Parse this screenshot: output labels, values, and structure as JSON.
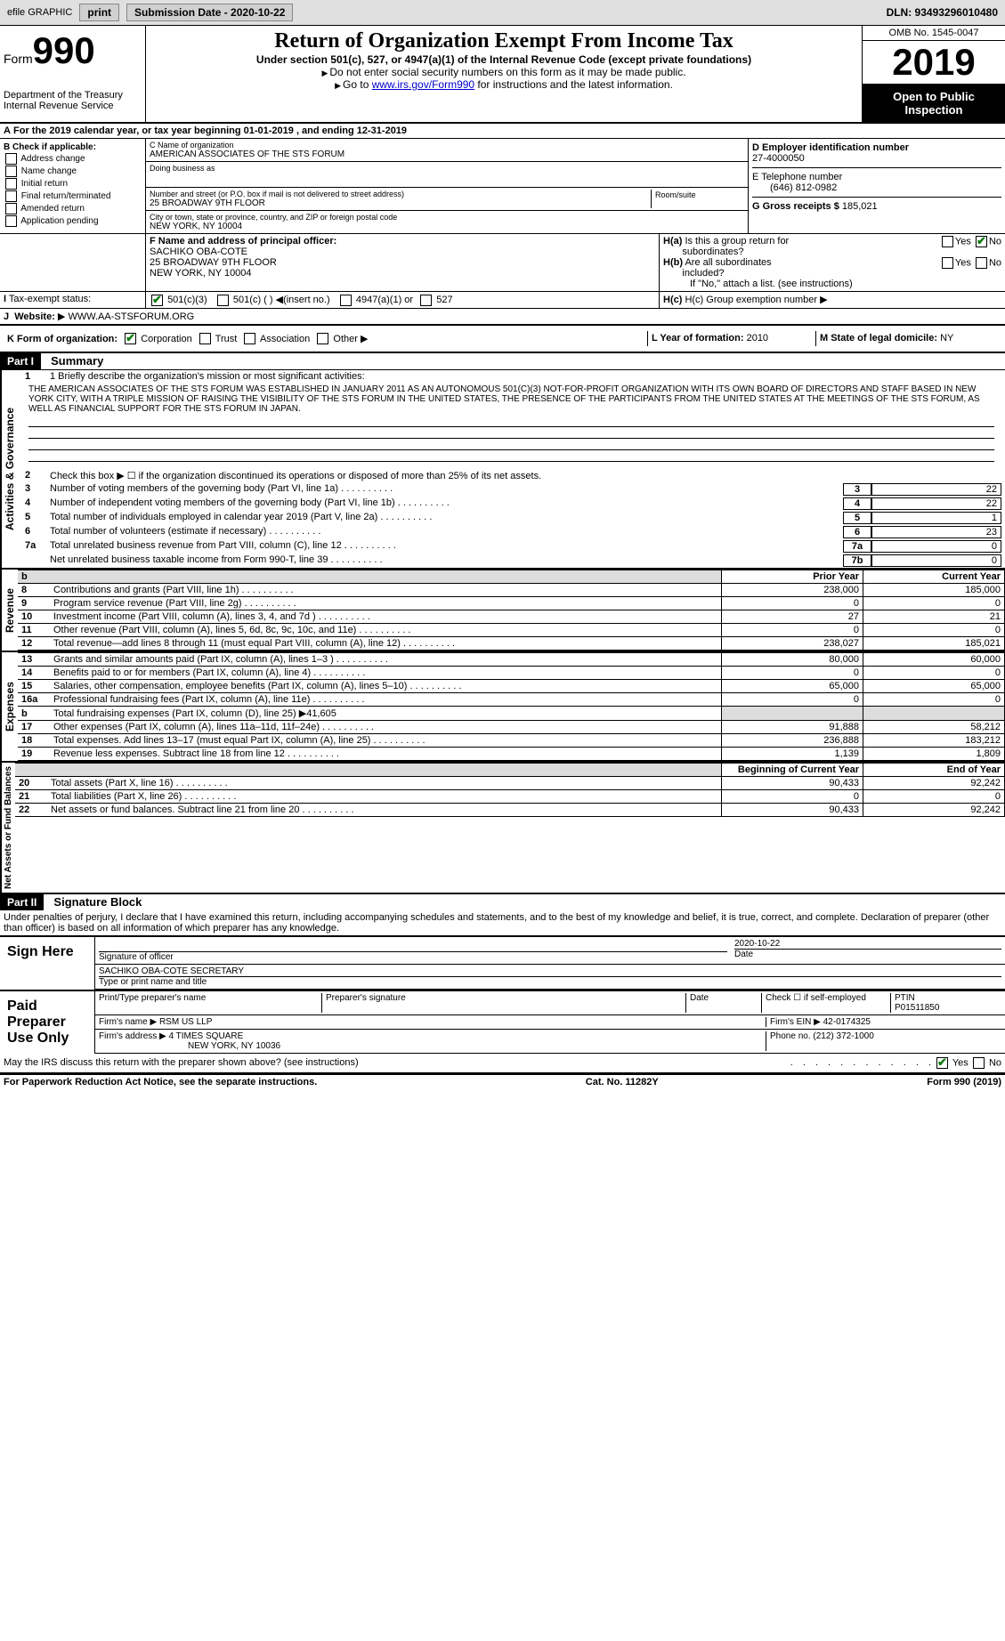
{
  "header": {
    "efile_label": "efile GRAPHIC",
    "print_btn": "print",
    "submission_label": "Submission Date - 2020-10-22",
    "dln_label": "DLN: 93493296010480"
  },
  "form_top": {
    "form_word": "Form",
    "form_num": "990",
    "dept": "Department of the Treasury\nInternal Revenue Service",
    "title": "Return of Organization Exempt From Income Tax",
    "subtitle": "Under section 501(c), 527, or 4947(a)(1) of the Internal Revenue Code (except private foundations)",
    "instr1": "Do not enter social security numbers on this form as it may be made public.",
    "instr2_pre": "Go to ",
    "instr2_link": "www.irs.gov/Form990",
    "instr2_post": " for instructions and the latest information.",
    "omb": "OMB No. 1545-0047",
    "year": "2019",
    "open": "Open to Public Inspection"
  },
  "period": {
    "text": "For the 2019 calendar year, or tax year beginning 01-01-2019   , and ending 12-31-2019"
  },
  "section_b": {
    "heading": "B Check if applicable:",
    "cb1": "Address change",
    "cb2": "Name change",
    "cb3": "Initial return",
    "cb4": "Final return/terminated",
    "cb5": "Amended return",
    "cb6": "Application pending",
    "c_name_label": "C Name of organization",
    "c_name": "AMERICAN ASSOCIATES OF THE STS FORUM",
    "dba_label": "Doing business as",
    "addr_label": "Number and street (or P.O. box if mail is not delivered to street address)",
    "room_label": "Room/suite",
    "addr": "25 BROADWAY 9TH FLOOR",
    "city_label": "City or town, state or province, country, and ZIP or foreign postal code",
    "city": "NEW YORK, NY  10004",
    "d_label": "D Employer identification number",
    "d_val": "27-4000050",
    "e_label": "E Telephone number",
    "e_val": "(646) 812-0982",
    "g_label": "G Gross receipts $",
    "g_val": "185,021"
  },
  "officer": {
    "f_label": "F  Name and address of principal officer:",
    "name": "SACHIKO OBA-COTE",
    "addr1": "25 BROADWAY 9TH FLOOR",
    "addr2": "NEW YORK, NY  10004",
    "ha_label": "H(a)  Is this a group return for subordinates?",
    "hb_label": "H(b)  Are all subordinates included?",
    "hb_note": "If \"No,\" attach a list. (see instructions)",
    "hc_label": "H(c)  Group exemption number",
    "yes": "Yes",
    "no": "No"
  },
  "tax_status": {
    "i_label": "Tax-exempt status:",
    "opt1": "501(c)(3)",
    "opt2": "501(c) (  )",
    "opt2_note": "(insert no.)",
    "opt3": "4947(a)(1) or",
    "opt4": "527"
  },
  "website": {
    "j_label": "Website:",
    "val": "WWW.AA-STSFORUM.ORG"
  },
  "form_org": {
    "k_label": "K Form of organization:",
    "opt1": "Corporation",
    "opt2": "Trust",
    "opt3": "Association",
    "opt4": "Other",
    "l_label": "L Year of formation:",
    "l_val": "2010",
    "m_label": "M State of legal domicile:",
    "m_val": "NY"
  },
  "part1": {
    "header": "Part I",
    "title": "Summary",
    "line1_label": "1  Briefly describe the organization's mission or most significant activities:",
    "mission": "THE AMERICAN ASSOCIATES OF THE STS FORUM WAS ESTABLISHED IN JANUARY 2011 AS AN AUTONOMOUS 501(C)(3) NOT-FOR-PROFIT ORGANIZATION WITH ITS OWN BOARD OF DIRECTORS AND STAFF BASED IN NEW YORK CITY, WITH A TRIPLE MISSION OF RAISING THE VISIBILITY OF THE STS FORUM IN THE UNITED STATES, THE PRESENCE OF THE PARTICIPANTS FROM THE UNITED STATES AT THE MEETINGS OF THE STS FORUM, AS WELL AS FINANCIAL SUPPORT FOR THE STS FORUM IN JAPAN.",
    "line2": "Check this box ▶ ☐  if the organization discontinued its operations or disposed of more than 25% of its net assets.",
    "sections": {
      "gov": "Activities & Governance",
      "rev": "Revenue",
      "exp": "Expenses",
      "net": "Net Assets or Fund Balances"
    },
    "gov_lines": [
      {
        "n": "3",
        "t": "Number of voting members of the governing body (Part VI, line 1a)",
        "box": "3",
        "v": "22"
      },
      {
        "n": "4",
        "t": "Number of independent voting members of the governing body (Part VI, line 1b)",
        "box": "4",
        "v": "22"
      },
      {
        "n": "5",
        "t": "Total number of individuals employed in calendar year 2019 (Part V, line 2a)",
        "box": "5",
        "v": "1"
      },
      {
        "n": "6",
        "t": "Total number of volunteers (estimate if necessary)",
        "box": "6",
        "v": "23"
      },
      {
        "n": "7a",
        "t": "Total unrelated business revenue from Part VIII, column (C), line 12",
        "box": "7a",
        "v": "0"
      },
      {
        "n": "",
        "t": "Net unrelated business taxable income from Form 990-T, line 39",
        "box": "7b",
        "v": "0"
      }
    ],
    "col_prior": "Prior Year",
    "col_current": "Current Year",
    "rev_lines": [
      {
        "n": "8",
        "t": "Contributions and grants (Part VIII, line 1h)",
        "p": "238,000",
        "c": "185,000"
      },
      {
        "n": "9",
        "t": "Program service revenue (Part VIII, line 2g)",
        "p": "0",
        "c": "0"
      },
      {
        "n": "10",
        "t": "Investment income (Part VIII, column (A), lines 3, 4, and 7d )",
        "p": "27",
        "c": "21"
      },
      {
        "n": "11",
        "t": "Other revenue (Part VIII, column (A), lines 5, 6d, 8c, 9c, 10c, and 11e)",
        "p": "0",
        "c": "0"
      },
      {
        "n": "12",
        "t": "Total revenue—add lines 8 through 11 (must equal Part VIII, column (A), line 12)",
        "p": "238,027",
        "c": "185,021"
      }
    ],
    "exp_lines": [
      {
        "n": "13",
        "t": "Grants and similar amounts paid (Part IX, column (A), lines 1–3 )",
        "p": "80,000",
        "c": "60,000"
      },
      {
        "n": "14",
        "t": "Benefits paid to or for members (Part IX, column (A), line 4)",
        "p": "0",
        "c": "0"
      },
      {
        "n": "15",
        "t": "Salaries, other compensation, employee benefits (Part IX, column (A), lines 5–10)",
        "p": "65,000",
        "c": "65,000"
      },
      {
        "n": "16a",
        "t": "Professional fundraising fees (Part IX, column (A), line 11e)",
        "p": "0",
        "c": "0"
      },
      {
        "n": "b",
        "t": "Total fundraising expenses (Part IX, column (D), line 25) ▶41,605",
        "p": "",
        "c": "",
        "gray": true
      },
      {
        "n": "17",
        "t": "Other expenses (Part IX, column (A), lines 11a–11d, 11f–24e)",
        "p": "91,888",
        "c": "58,212"
      },
      {
        "n": "18",
        "t": "Total expenses. Add lines 13–17 (must equal Part IX, column (A), line 25)",
        "p": "236,888",
        "c": "183,212"
      },
      {
        "n": "19",
        "t": "Revenue less expenses. Subtract line 18 from line 12",
        "p": "1,139",
        "c": "1,809"
      }
    ],
    "col_begin": "Beginning of Current Year",
    "col_end": "End of Year",
    "net_lines": [
      {
        "n": "20",
        "t": "Total assets (Part X, line 16)",
        "p": "90,433",
        "c": "92,242"
      },
      {
        "n": "21",
        "t": "Total liabilities (Part X, line 26)",
        "p": "0",
        "c": "0"
      },
      {
        "n": "22",
        "t": "Net assets or fund balances. Subtract line 21 from line 20",
        "p": "90,433",
        "c": "92,242"
      }
    ]
  },
  "part2": {
    "header": "Part II",
    "title": "Signature Block",
    "decl": "Under penalties of perjury, I declare that I have examined this return, including accompanying schedules and statements, and to the best of my knowledge and belief, it is true, correct, and complete. Declaration of preparer (other than officer) is based on all information of which preparer has any knowledge.",
    "sign_here": "Sign Here",
    "sig_officer": "Signature of officer",
    "sig_date": "2020-10-22",
    "date_label": "Date",
    "officer_name": "SACHIKO OBA-COTE SECRETARY",
    "type_name": "Type or print name and title",
    "paid_prep": "Paid Preparer Use Only",
    "print_prep": "Print/Type preparer's name",
    "prep_sig": "Preparer's signature",
    "check_self": "Check ☐ if self-employed",
    "ptin_label": "PTIN",
    "ptin": "P01511850",
    "firm_name_label": "Firm's name ▶",
    "firm_name": "RSM US LLP",
    "firm_ein_label": "Firm's EIN ▶",
    "firm_ein": "42-0174325",
    "firm_addr_label": "Firm's address ▶",
    "firm_addr": "4 TIMES SQUARE",
    "firm_city": "NEW YORK, NY  10036",
    "phone_label": "Phone no.",
    "phone": "(212) 372-1000",
    "discuss": "May the IRS discuss this return with the preparer shown above? (see instructions)"
  },
  "footer": {
    "pra": "For Paperwork Reduction Act Notice, see the separate instructions.",
    "cat": "Cat. No. 11282Y",
    "form": "Form 990 (2019)"
  },
  "colors": {
    "link": "#0000cc",
    "check": "#0a7a0a"
  }
}
